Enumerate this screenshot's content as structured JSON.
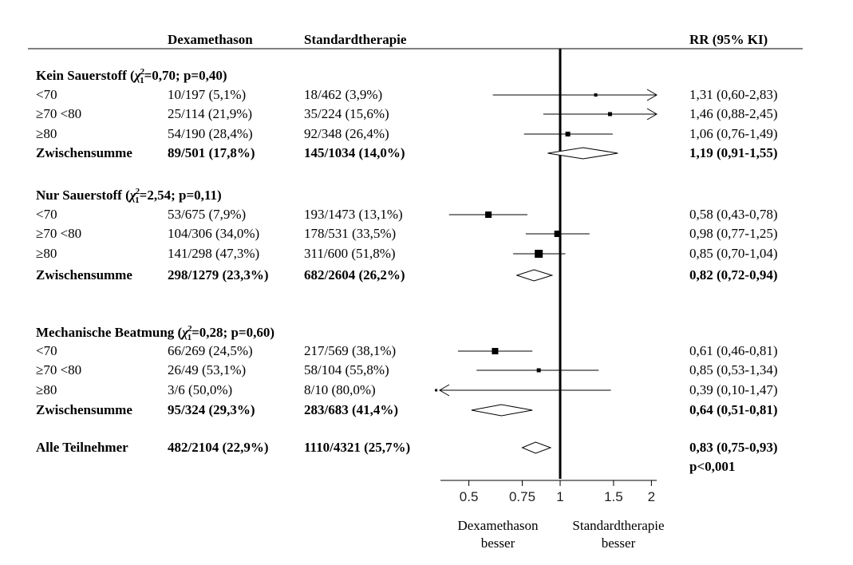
{
  "chart_data": {
    "type": "forest",
    "headers": {
      "dexamethason": "Dexamethason",
      "standard": "Standardtherapie",
      "rr": "RR (95% KI)"
    },
    "groups": [
      {
        "title": "Kein Sauerstoff (χ²₁=0,70; p=0,40)",
        "title_main": "Kein Sauerstoff (",
        "title_chi": "χ",
        "title_sup": "2",
        "title_sub": "1",
        "title_rest": "=0,70; p=0,40)",
        "rows": [
          {
            "label": "<70",
            "dex": "10/197 (5,1%)",
            "std": "18/462 (3,9%)",
            "rr_text": "1,31 (0,60-2,83)",
            "rr": 1.31,
            "lo": 0.6,
            "hi": 2.83,
            "weight": 1,
            "arrow": "right"
          },
          {
            "label": "≥70 <80",
            "dex": "25/114 (21,9%)",
            "std": "35/224 (15,6%)",
            "rr_text": "1,46 (0,88-2,45)",
            "rr": 1.46,
            "lo": 0.88,
            "hi": 2.45,
            "weight": 2,
            "arrow": "right"
          },
          {
            "label": "≥80",
            "dex": "54/190 (28,4%)",
            "std": "92/348 (26,4%)",
            "rr_text": "1,06 (0,76-1,49)",
            "rr": 1.06,
            "lo": 0.76,
            "hi": 1.49,
            "weight": 3,
            "arrow": ""
          }
        ],
        "subtotal": {
          "label": "Zwischensumme",
          "dex": "89/501 (17,8%)",
          "std": "145/1034 (14,0%)",
          "rr_text": "1,19 (0,91-1,55)",
          "rr": 1.19,
          "lo": 0.91,
          "hi": 1.55
        }
      },
      {
        "title": "Nur Sauerstoff (χ²₁=2,54; p=0,11)",
        "title_main": "Nur Sauerstoff (",
        "title_chi": "χ",
        "title_sup": "2",
        "title_sub": "1",
        "title_rest": "=2,54; p=0,11)",
        "rows": [
          {
            "label": "<70",
            "dex": "53/675 (7,9%)",
            "std": "193/1473 (13,1%)",
            "rr_text": "0,58 (0,43-0,78)",
            "rr": 0.58,
            "lo": 0.43,
            "hi": 0.78,
            "weight": 4,
            "arrow": ""
          },
          {
            "label": "≥70 <80",
            "dex": "104/306 (34,0%)",
            "std": "178/531 (33,5%)",
            "rr_text": "0,98 (0,77-1,25)",
            "rr": 0.98,
            "lo": 0.77,
            "hi": 1.25,
            "weight": 4,
            "arrow": ""
          },
          {
            "label": "≥80",
            "dex": "141/298 (47,3%)",
            "std": "311/600 (51,8%)",
            "rr_text": "0,85 (0,70-1,04)",
            "rr": 0.85,
            "lo": 0.7,
            "hi": 1.04,
            "weight": 5,
            "arrow": ""
          }
        ],
        "subtotal": {
          "label": "Zwischensumme",
          "dex": "298/1279 (23,3%)",
          "std": "682/2604 (26,2%)",
          "rr_text": "0,82 (0,72-0,94)",
          "rr": 0.82,
          "lo": 0.72,
          "hi": 0.94
        }
      },
      {
        "title": "Mechanische Beatmung (χ²₁=0,28; p=0,60)",
        "title_main": "Mechanische Beatmung (",
        "title_chi": "χ",
        "title_sup": "2",
        "title_sub": "1",
        "title_rest": "=0,28; p=0,60)",
        "rows": [
          {
            "label": "<70",
            "dex": "66/269 (24,5%)",
            "std": "217/569 (38,1%)",
            "rr_text": "0,61 (0,46-0,81)",
            "rr": 0.61,
            "lo": 0.46,
            "hi": 0.81,
            "weight": 4,
            "arrow": ""
          },
          {
            "label": "≥70 <80",
            "dex": "26/49 (53,1%)",
            "std": "58/104 (55,8%)",
            "rr_text": "0,85 (0,53-1,34)",
            "rr": 0.85,
            "lo": 0.53,
            "hi": 1.34,
            "weight": 2,
            "arrow": ""
          },
          {
            "label": "≥80",
            "dex": "3/6 (50,0%)",
            "std": "8/10 (80,0%)",
            "rr_text": "0,39 (0,10-1,47)",
            "rr": 0.39,
            "lo": 0.1,
            "hi": 1.47,
            "weight": 0,
            "arrow": "left"
          }
        ],
        "subtotal": {
          "label": "Zwischensumme",
          "dex": "95/324 (29,3%)",
          "std": "283/683 (41,4%)",
          "rr_text": "0,64 (0,51-0,81)",
          "rr": 0.64,
          "lo": 0.51,
          "hi": 0.81
        }
      }
    ],
    "overall": {
      "label": "Alle Teilnehmer",
      "dex": "482/2104 (22,9%)",
      "std": "1110/4321 (25,7%)",
      "rr_text": "0,83 (0,75-0,93)",
      "p_text": "p<0,001",
      "rr": 0.83,
      "lo": 0.75,
      "hi": 0.93
    },
    "x_axis": {
      "scale": "log",
      "ticks": [
        0.5,
        0.75,
        1,
        1.5,
        2
      ],
      "tick_labels": [
        "0.5",
        "0.75",
        "1",
        "1.5",
        "2"
      ],
      "reference": 1
    },
    "direction_labels": {
      "left_line1": "Dexamethason",
      "left_line2": "besser",
      "right_line1": "Standardtherapie",
      "right_line2": "besser"
    }
  }
}
